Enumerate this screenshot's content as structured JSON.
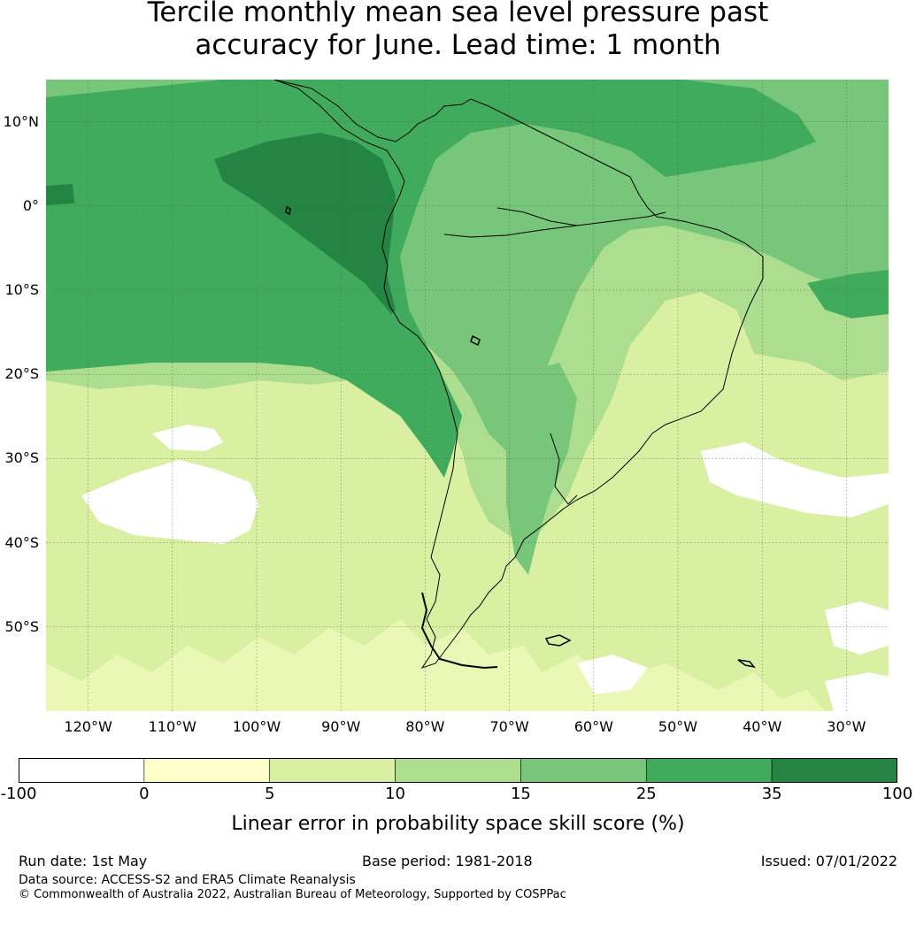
{
  "title": {
    "line1": "Tercile monthly mean sea level pressure past",
    "line2": "accuracy for June. Lead time: 1 month"
  },
  "map": {
    "region": "South America",
    "lat_range": [
      -60,
      15
    ],
    "lon_range": [
      -125,
      -25
    ],
    "lat_ticks": [
      "10°N",
      "0°",
      "10°S",
      "20°S",
      "30°S",
      "40°S",
      "50°S"
    ],
    "lat_values": [
      10,
      0,
      -10,
      -20,
      -30,
      -40,
      -50
    ],
    "lon_ticks": [
      "120°W",
      "110°W",
      "100°W",
      "90°W",
      "80°W",
      "70°W",
      "60°W",
      "50°W",
      "40°W",
      "30°W"
    ],
    "lon_values": [
      -120,
      -110,
      -100,
      -90,
      -80,
      -70,
      -60,
      -50,
      -40,
      -30
    ]
  },
  "colorbar": {
    "label": "Linear error in probability space skill score (%)",
    "ticks": [
      "-100",
      "0",
      "5",
      "10",
      "15",
      "25",
      "35",
      "100"
    ],
    "colors": [
      "#ffffff",
      "#ffffcc",
      "#d9f0a3",
      "#addd8e",
      "#78c679",
      "#41ab5d",
      "#238443"
    ]
  },
  "footer": {
    "run_date": "Run date: 1st May",
    "base_period": "Base period: 1981-2018",
    "issued": "Issued: 07/01/2022",
    "data_source": "Data source: ACCESS-S2 and ERA5 Climate Reanalysis",
    "copyright": "© Commonwealth of Australia 2022, Australian Bureau of Meteorology, Supported by COSPPac"
  }
}
